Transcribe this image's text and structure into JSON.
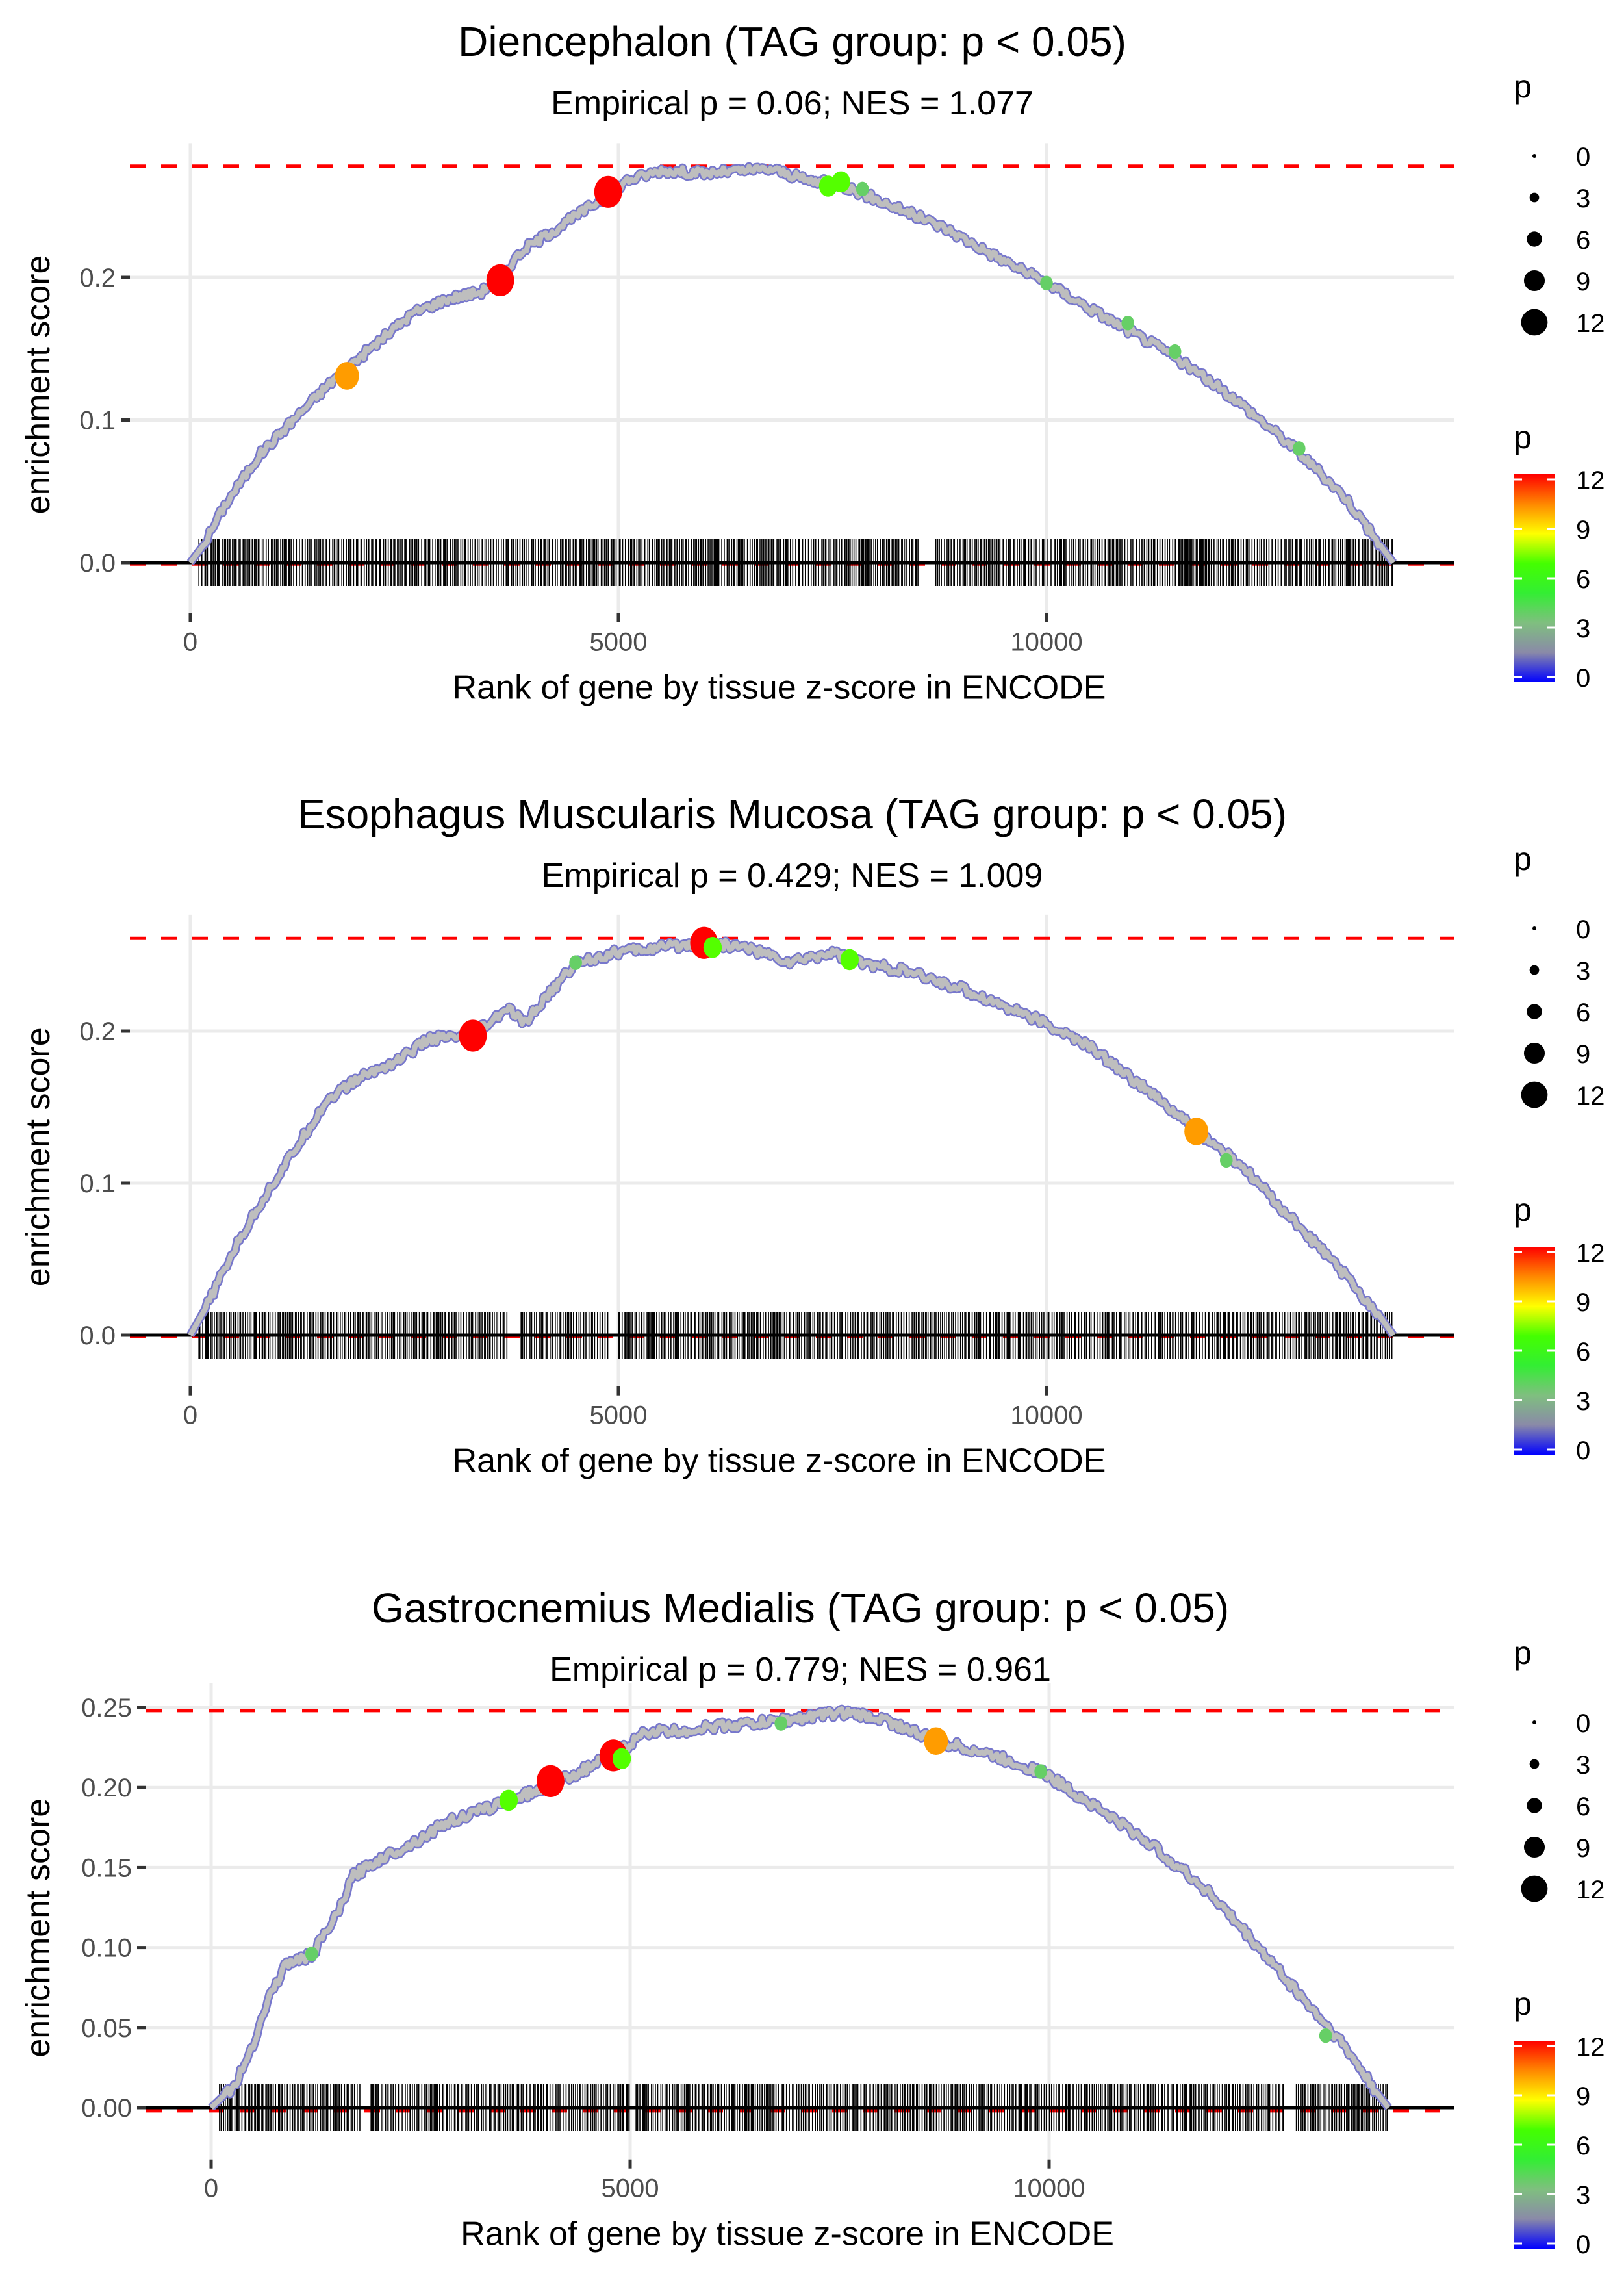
{
  "chart_data": [
    {
      "type": "line",
      "title": "Diencephalon (TAG group: p < 0.05)",
      "subtitle": "Empirical p = 0.06; NES = 1.077",
      "xlabel": "Rank of gene by tissue z-score in ENCODE",
      "ylabel": "enrichment score",
      "xlim": [
        -700,
        14700
      ],
      "ylim": [
        -0.008,
        0.285
      ],
      "x_ticks": [
        0,
        5000,
        10000
      ],
      "x_tick_labels": [
        "0",
        "5000",
        "10000"
      ],
      "y_ticks": [
        0.0,
        0.1,
        0.2
      ],
      "y_tick_labels": [
        "0.0",
        "0.1",
        "0.2"
      ],
      "max_es": 0.278,
      "min_es": -0.001,
      "grid": true,
      "curve_keypoints": [
        [
          0,
          0
        ],
        [
          150,
          0.012
        ],
        [
          400,
          0.04
        ],
        [
          800,
          0.075
        ],
        [
          1200,
          0.1
        ],
        [
          1700,
          0.13
        ],
        [
          2200,
          0.155
        ],
        [
          2600,
          0.175
        ],
        [
          3000,
          0.185
        ],
        [
          3400,
          0.19
        ],
        [
          3600,
          0.2
        ],
        [
          3900,
          0.22
        ],
        [
          4300,
          0.235
        ],
        [
          4800,
          0.255
        ],
        [
          5100,
          0.268
        ],
        [
          5500,
          0.275
        ],
        [
          6000,
          0.273
        ],
        [
          6500,
          0.275
        ],
        [
          6800,
          0.276
        ],
        [
          7200,
          0.268
        ],
        [
          7600,
          0.265
        ],
        [
          8200,
          0.25
        ],
        [
          8800,
          0.235
        ],
        [
          9400,
          0.215
        ],
        [
          10000,
          0.196
        ],
        [
          10600,
          0.175
        ],
        [
          11400,
          0.148
        ],
        [
          12200,
          0.115
        ],
        [
          12900,
          0.08
        ],
        [
          13500,
          0.045
        ],
        [
          13900,
          0.012
        ],
        [
          14050,
          0
        ]
      ],
      "rug_range": [
        100,
        14050
      ],
      "rug_gaps": [
        [
          8500,
          8700
        ]
      ],
      "highlight_points": [
        {
          "rank": 1830,
          "es": 0.131,
          "p": 10
        },
        {
          "rank": 3620,
          "es": 0.198,
          "p": 12
        },
        {
          "rank": 4880,
          "es": 0.26,
          "p": 12
        },
        {
          "rank": 7450,
          "es": 0.264,
          "p": 7
        },
        {
          "rank": 7600,
          "es": 0.267,
          "p": 7
        },
        {
          "rank": 7850,
          "es": 0.262,
          "p": 4
        },
        {
          "rank": 10000,
          "es": 0.196,
          "p": 4
        },
        {
          "rank": 10950,
          "es": 0.168,
          "p": 4
        },
        {
          "rank": 11500,
          "es": 0.148,
          "p": 4
        },
        {
          "rank": 12950,
          "es": 0.08,
          "p": 4
        }
      ]
    },
    {
      "type": "line",
      "title": "Esophagus Muscularis Mucosa (TAG group: p < 0.05)",
      "subtitle": "Empirical p = 0.429; NES = 1.009",
      "xlabel": "Rank of gene by tissue z-score in ENCODE",
      "ylabel": "enrichment score",
      "xlim": [
        -700,
        14700
      ],
      "ylim": [
        -0.008,
        0.268
      ],
      "x_ticks": [
        0,
        5000,
        10000
      ],
      "x_tick_labels": [
        "0",
        "5000",
        "10000"
      ],
      "y_ticks": [
        0.0,
        0.1,
        0.2
      ],
      "y_tick_labels": [
        "0.0",
        "0.1",
        "0.2"
      ],
      "max_es": 0.261,
      "min_es": -0.001,
      "grid": true,
      "curve_keypoints": [
        [
          0,
          0
        ],
        [
          200,
          0.02
        ],
        [
          500,
          0.055
        ],
        [
          800,
          0.085
        ],
        [
          1200,
          0.12
        ],
        [
          1600,
          0.155
        ],
        [
          2000,
          0.17
        ],
        [
          2400,
          0.18
        ],
        [
          2800,
          0.195
        ],
        [
          3200,
          0.196
        ],
        [
          3500,
          0.205
        ],
        [
          3700,
          0.215
        ],
        [
          3900,
          0.205
        ],
        [
          4200,
          0.225
        ],
        [
          4500,
          0.245
        ],
        [
          5000,
          0.252
        ],
        [
          5500,
          0.255
        ],
        [
          6000,
          0.258
        ],
        [
          6500,
          0.255
        ],
        [
          7000,
          0.245
        ],
        [
          7500,
          0.252
        ],
        [
          7800,
          0.245
        ],
        [
          8300,
          0.24
        ],
        [
          9000,
          0.228
        ],
        [
          9800,
          0.21
        ],
        [
          10500,
          0.19
        ],
        [
          11200,
          0.16
        ],
        [
          11800,
          0.132
        ],
        [
          12300,
          0.11
        ],
        [
          12800,
          0.08
        ],
        [
          13400,
          0.045
        ],
        [
          13900,
          0.012
        ],
        [
          14050,
          0
        ]
      ],
      "rug_range": [
        100,
        14050
      ],
      "rug_gaps": [
        [
          3700,
          3850
        ],
        [
          4900,
          5000
        ]
      ],
      "highlight_points": [
        {
          "rank": 3300,
          "es": 0.197,
          "p": 12
        },
        {
          "rank": 6000,
          "es": 0.258,
          "p": 12
        },
        {
          "rank": 6100,
          "es": 0.255,
          "p": 7
        },
        {
          "rank": 4500,
          "es": 0.245,
          "p": 4
        },
        {
          "rank": 7700,
          "es": 0.247,
          "p": 7
        },
        {
          "rank": 11750,
          "es": 0.134,
          "p": 10
        },
        {
          "rank": 12100,
          "es": 0.115,
          "p": 4
        }
      ]
    },
    {
      "type": "line",
      "title": "Gastrocnemius Medialis (TAG group: p < 0.05)",
      "subtitle": "Empirical p = 0.779; NES = 0.961",
      "xlabel": "Rank of gene by tissue z-score in ENCODE",
      "ylabel": "enrichment score",
      "xlim": [
        -700,
        14700
      ],
      "ylim": [
        -0.008,
        0.257
      ],
      "x_ticks": [
        0,
        5000,
        10000
      ],
      "x_tick_labels": [
        "0",
        "5000",
        "10000"
      ],
      "y_ticks": [
        0.0,
        0.05,
        0.1,
        0.15,
        0.2,
        0.25
      ],
      "y_tick_labels": [
        "0.00",
        "0.05",
        "0.10",
        "0.15",
        "0.20",
        "0.25"
      ],
      "max_es": 0.248,
      "min_es": -0.002,
      "grid": true,
      "curve_keypoints": [
        [
          0,
          0
        ],
        [
          300,
          0.015
        ],
        [
          500,
          0.04
        ],
        [
          700,
          0.07
        ],
        [
          900,
          0.09
        ],
        [
          1200,
          0.095
        ],
        [
          1500,
          0.12
        ],
        [
          1700,
          0.145
        ],
        [
          2000,
          0.155
        ],
        [
          2400,
          0.165
        ],
        [
          2800,
          0.178
        ],
        [
          3200,
          0.185
        ],
        [
          3600,
          0.193
        ],
        [
          4000,
          0.2
        ],
        [
          4400,
          0.21
        ],
        [
          4800,
          0.22
        ],
        [
          5200,
          0.235
        ],
        [
          5600,
          0.235
        ],
        [
          6000,
          0.238
        ],
        [
          6500,
          0.24
        ],
        [
          7000,
          0.243
        ],
        [
          7500,
          0.247
        ],
        [
          8000,
          0.243
        ],
        [
          8600,
          0.23
        ],
        [
          9200,
          0.222
        ],
        [
          9900,
          0.21
        ],
        [
          10500,
          0.19
        ],
        [
          11200,
          0.165
        ],
        [
          11900,
          0.135
        ],
        [
          12500,
          0.1
        ],
        [
          13000,
          0.07
        ],
        [
          13500,
          0.04
        ],
        [
          13900,
          0.01
        ],
        [
          14050,
          0
        ]
      ],
      "rug_range": [
        100,
        14050
      ],
      "rug_gaps": [
        [
          1800,
          1900
        ],
        [
          5000,
          5050
        ],
        [
          12800,
          12950
        ]
      ],
      "highlight_points": [
        {
          "rank": 1200,
          "es": 0.096,
          "p": 4
        },
        {
          "rank": 3550,
          "es": 0.192,
          "p": 7
        },
        {
          "rank": 4050,
          "es": 0.204,
          "p": 12
        },
        {
          "rank": 4800,
          "es": 0.22,
          "p": 12
        },
        {
          "rank": 4900,
          "es": 0.218,
          "p": 7
        },
        {
          "rank": 6800,
          "es": 0.24,
          "p": 4
        },
        {
          "rank": 8650,
          "es": 0.229,
          "p": 10
        },
        {
          "rank": 9900,
          "es": 0.21,
          "p": 4
        },
        {
          "rank": 13300,
          "es": 0.045,
          "p": 4
        }
      ]
    }
  ],
  "legend": {
    "size_title": "p",
    "size_values": [
      "0",
      "3",
      "6",
      "9",
      "12"
    ],
    "color_title": "p",
    "color_values": [
      "12",
      "9",
      "6",
      "3",
      "0"
    ],
    "color_range": [
      0,
      12
    ],
    "color_stops": [
      "#0000ff",
      "#8a8aa8",
      "#7fbf7f",
      "#33ee33",
      "#44ff00",
      "#ffff00",
      "#ff8800",
      "#ff0000"
    ]
  },
  "colors": {
    "max_line": "#ff0000",
    "curve_base": "#bebebe",
    "curve_outline": "#7777cc",
    "rug": "#000000",
    "zero_line": "#000000"
  }
}
